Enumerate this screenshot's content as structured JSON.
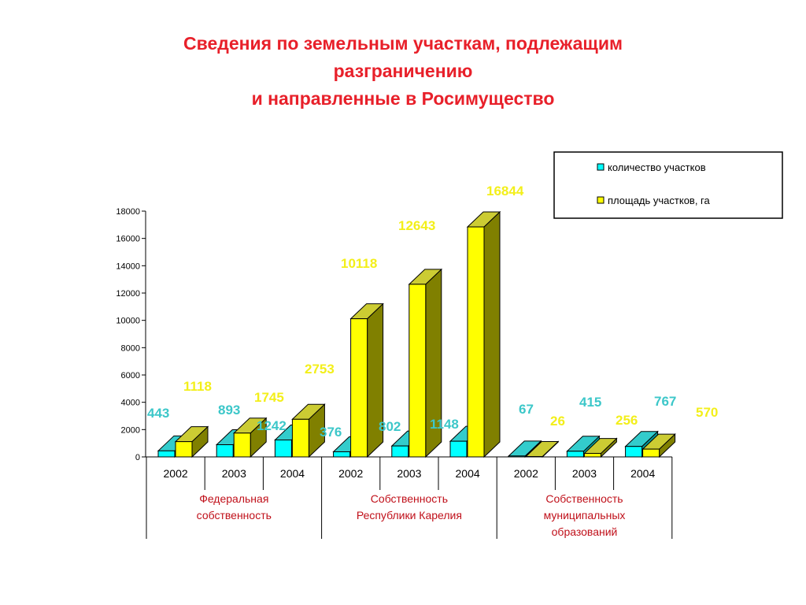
{
  "title": {
    "line1": "Сведения по земельным участкам, подлежащим",
    "line2": "разграничению",
    "line3": "и направленные в Росимущество"
  },
  "colors": {
    "count_front": "#00ffff",
    "count_top": "#33cccc",
    "count_side": "#009999",
    "area_front": "#ffff00",
    "area_top": "#cccc33",
    "area_side": "#808000",
    "count_label": "#3cc7c9",
    "area_label": "#f3ef1a",
    "group_label": "#c0101a",
    "title": "#e8202a"
  },
  "chart_data": {
    "type": "bar",
    "categories": [
      "2002",
      "2003",
      "2004",
      "2002",
      "2003",
      "2004",
      "2002",
      "2003",
      "2004"
    ],
    "groups": [
      {
        "lines": [
          "Федеральная",
          "собственность"
        ],
        "span": 3
      },
      {
        "lines": [
          "Собственность",
          "Республики Карелия"
        ],
        "span": 3
      },
      {
        "lines": [
          "Собственность",
          "муниципальных",
          "образований"
        ],
        "span": 3
      }
    ],
    "series": [
      {
        "name": "количество участков",
        "values": [
          443,
          893,
          1242,
          376,
          802,
          1148,
          67,
          415,
          767
        ],
        "labels": [
          "443",
          "893",
          "1242",
          "376",
          "802",
          "1148",
          "67",
          "415",
          "767"
        ]
      },
      {
        "name": "площадь участков, га",
        "values": [
          1118,
          1745,
          2753,
          10118,
          12643,
          16844,
          26,
          256,
          570
        ],
        "labels": [
          "1118",
          "1745",
          "2753",
          "10118",
          "12643",
          "16844",
          "26",
          "256",
          "570"
        ]
      }
    ],
    "ylim": [
      0,
      18000
    ],
    "yticks": [
      "0",
      "2000",
      "4000",
      "6000",
      "8000",
      "10000",
      "12000",
      "14000",
      "16000",
      "18000"
    ],
    "grid": false,
    "legend": "top-right"
  }
}
